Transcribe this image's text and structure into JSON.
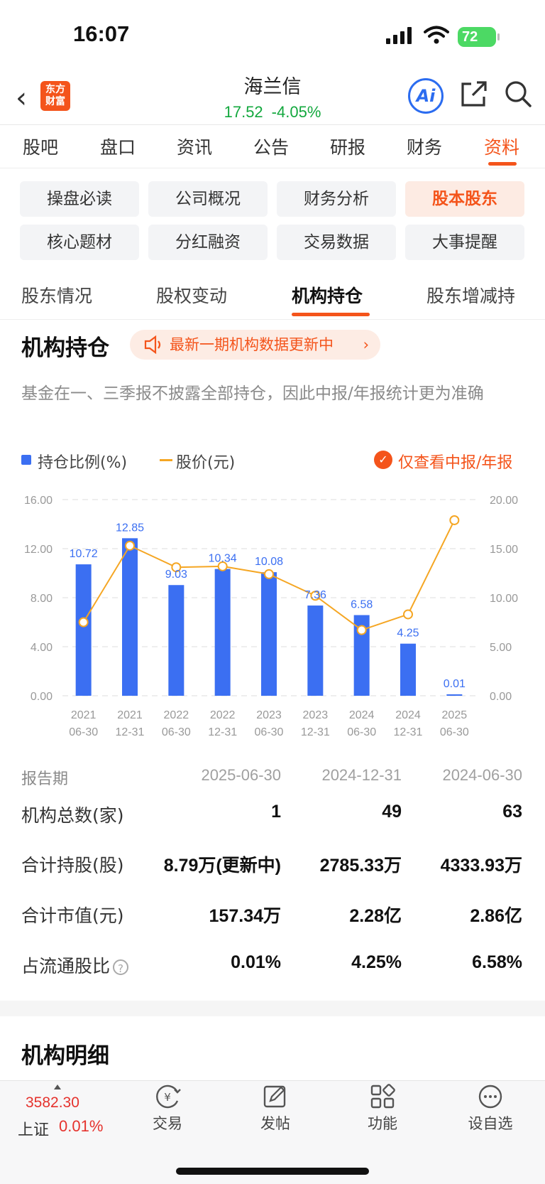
{
  "status_bar": {
    "time": "16:07",
    "battery": "72"
  },
  "header": {
    "logo_line1": "东方",
    "logo_line2": "财富",
    "stock_name": "海兰信",
    "price": "17.52",
    "change_pct": "-4.05%",
    "ai_label": "Ai"
  },
  "main_tabs": [
    "股吧",
    "盘口",
    "资讯",
    "公告",
    "研报",
    "财务",
    "资料"
  ],
  "grid_buttons": [
    "操盘必读",
    "公司概况",
    "财务分析",
    "股本股东",
    "核心题材",
    "分红融资",
    "交易数据",
    "大事提醒"
  ],
  "sub_tabs": [
    "股东情况",
    "股权变动",
    "机构持仓",
    "股东增减持"
  ],
  "section": {
    "title": "机构持仓",
    "notice": "最新一期机构数据更新中",
    "description": "基金在一、三季报不披露全部持仓，因此中报/年报统计更为准确"
  },
  "legend": {
    "bar": "持仓比例(%)",
    "line": "股价(元)",
    "filter": "仅查看中报/年报"
  },
  "colors": {
    "accent": "#f4541b",
    "bar": "#3b6ff2",
    "line": "#f5a623",
    "up": "#e5322d",
    "down": "#13a83e"
  },
  "chart_data": {
    "type": "bar",
    "categories": [
      "2021\n06-30",
      "2021\n12-31",
      "2022\n06-30",
      "2022\n12-31",
      "2023\n06-30",
      "2023\n12-31",
      "2024\n06-30",
      "2024\n12-31",
      "2025\n06-30"
    ],
    "series": [
      {
        "name": "持仓比例(%)",
        "type": "bar",
        "axis": "left",
        "values": [
          10.72,
          12.85,
          9.03,
          10.34,
          10.08,
          7.36,
          6.58,
          4.25,
          0.01
        ],
        "labels": [
          "10.72",
          "12.85",
          "9.03",
          "10.34",
          "10.08",
          "7.36",
          "6.58",
          "4.25",
          "0.01"
        ]
      },
      {
        "name": "股价(元)",
        "type": "line",
        "axis": "right",
        "values": [
          7.5,
          15.3,
          13.1,
          13.2,
          12.4,
          10.2,
          6.7,
          8.3,
          17.9
        ]
      }
    ],
    "left_ticks": [
      "16.00",
      "12.00",
      "8.00",
      "4.00",
      "0.00"
    ],
    "right_ticks": [
      "20.00",
      "15.00",
      "10.00",
      "5.00",
      "0.00"
    ],
    "ylim_left": [
      0,
      16
    ],
    "ylim_right": [
      0,
      20
    ],
    "grid": true
  },
  "table": {
    "header_label": "报告期",
    "periods": [
      "2025-06-30",
      "2024-12-31",
      "2024-06-30"
    ],
    "rows": [
      {
        "label": "机构总数(家)",
        "values": [
          "1",
          "49",
          "63"
        ]
      },
      {
        "label": "合计持股(股)",
        "values": [
          "8.79万(更新中)",
          "2785.33万",
          "4333.93万"
        ]
      },
      {
        "label": "合计市值(元)",
        "values": [
          "157.34万",
          "2.28亿",
          "2.86亿"
        ]
      },
      {
        "label": "占流通股比",
        "values": [
          "0.01%",
          "4.25%",
          "6.58%"
        ],
        "help_icon": "?"
      }
    ]
  },
  "section2": {
    "title": "机构明细"
  },
  "bottom_nav": {
    "index_value": "3582.30",
    "index_name": "上证",
    "index_change": "0.01%",
    "items": [
      "交易",
      "发帖",
      "功能",
      "设自选"
    ]
  }
}
